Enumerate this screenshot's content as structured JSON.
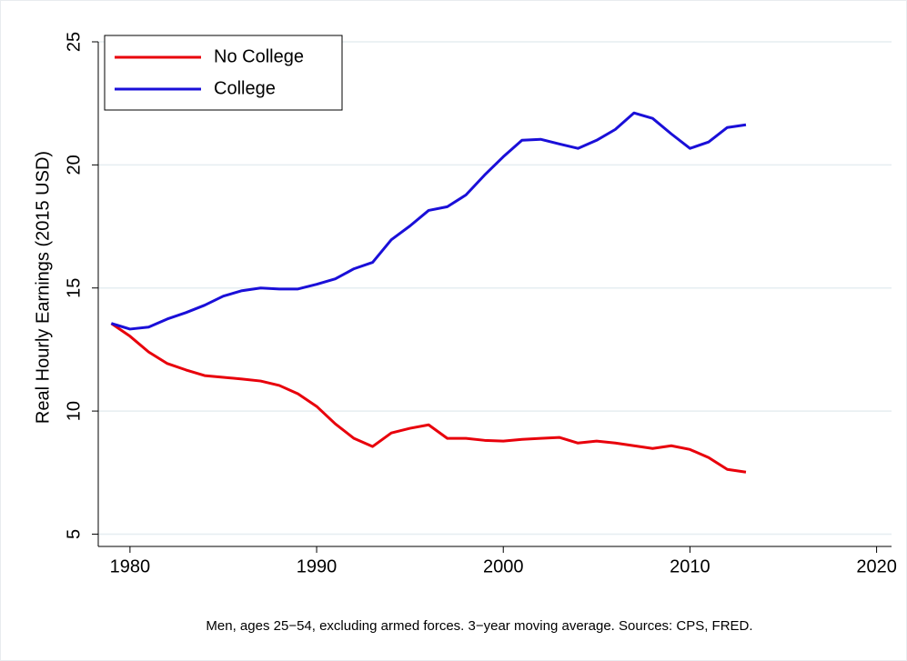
{
  "chart_data": {
    "type": "line",
    "y_label": "Real Hourly Earnings (2015 USD)",
    "caption": "Men, ages 25−54, excluding armed forces. 3−year moving average. Sources: CPS, FRED.",
    "x": [
      1979,
      1980,
      1981,
      1982,
      1983,
      1984,
      1985,
      1986,
      1987,
      1988,
      1989,
      1990,
      1991,
      1992,
      1993,
      1994,
      1995,
      1996,
      1997,
      1998,
      1999,
      2000,
      2001,
      2002,
      2003,
      2004,
      2005,
      2006,
      2007,
      2008,
      2009,
      2010,
      2011,
      2012,
      2013
    ],
    "series": [
      {
        "name": "No College",
        "color": "#e8000b",
        "values": [
          13.56,
          13.04,
          12.4,
          11.93,
          11.67,
          11.44,
          11.37,
          11.3,
          11.22,
          11.04,
          10.7,
          10.19,
          9.48,
          8.89,
          8.56,
          9.11,
          9.3,
          9.44,
          8.89,
          8.89,
          8.81,
          8.78,
          8.85,
          8.89,
          8.93,
          8.7,
          8.78,
          8.7,
          8.59,
          8.48,
          8.59,
          8.44,
          8.11,
          7.63,
          7.52
        ]
      },
      {
        "name": "College",
        "color": "#1a0fd8",
        "values": [
          13.56,
          13.33,
          13.41,
          13.74,
          14.0,
          14.3,
          14.67,
          14.89,
          15.0,
          14.96,
          14.96,
          15.15,
          15.37,
          15.78,
          16.04,
          16.96,
          17.52,
          18.15,
          18.3,
          18.78,
          19.59,
          20.33,
          21.0,
          21.04,
          20.85,
          20.67,
          21.0,
          21.44,
          22.11,
          21.89,
          21.26,
          20.67,
          20.93,
          21.52,
          21.63
        ]
      }
    ],
    "xlim": [
      1978.3,
      2020.8
    ],
    "xticks": [
      1980,
      1990,
      2000,
      2010,
      2020
    ],
    "ylim": [
      4.5,
      25
    ],
    "yticks": [
      5,
      10,
      15,
      20,
      25
    ],
    "grid": true,
    "legend": "upper left"
  }
}
